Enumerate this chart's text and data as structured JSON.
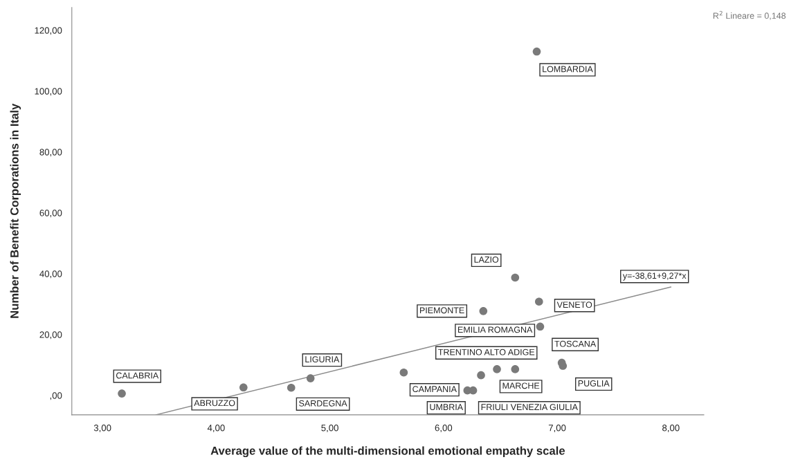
{
  "chart_data": {
    "type": "scatter",
    "xlabel": "Average value of the multi-dimensional emotional empathy scale",
    "ylabel": "Number of Benefit Corporations in Italy",
    "xlim": [
      2.73,
      8.29
    ],
    "ylim": [
      -6.4,
      127.5
    ],
    "xticks": [
      {
        "value": 3,
        "label": "3,00"
      },
      {
        "value": 4,
        "label": "4,00"
      },
      {
        "value": 5,
        "label": "5,00"
      },
      {
        "value": 6,
        "label": "6,00"
      },
      {
        "value": 7,
        "label": "7,00"
      },
      {
        "value": 8,
        "label": "8,00"
      }
    ],
    "yticks": [
      {
        "value": 0,
        "label": ",00"
      },
      {
        "value": 20,
        "label": "20,00"
      },
      {
        "value": 40,
        "label": "40,00"
      },
      {
        "value": 60,
        "label": "60,00"
      },
      {
        "value": 80,
        "label": "80,00"
      },
      {
        "value": 100,
        "label": "100,00"
      },
      {
        "value": 120,
        "label": "120,00"
      }
    ],
    "grid": false,
    "series": [
      {
        "color": "#7a7a7a",
        "marker": "circle",
        "x": [
          3.17,
          4.24,
          4.66,
          4.83,
          5.65,
          6.21,
          6.26,
          6.33,
          6.47,
          6.63,
          7.04,
          7.05,
          6.85,
          6.84,
          6.35,
          6.63,
          6.82
        ],
        "values": [
          0.6,
          2.6,
          2.5,
          5.6,
          7.5,
          1.6,
          1.6,
          6.6,
          8.6,
          8.6,
          10.7,
          9.7,
          22.6,
          30.8,
          27.7,
          38.7,
          113
        ]
      },
      {
        "type": "line",
        "color": "#8c8c8c",
        "x": [
          3.47,
          8.0
        ],
        "values": [
          -6.4,
          35.6
        ]
      }
    ],
    "annotations": [
      {
        "text": "CALABRIA",
        "x": 3.17,
        "y": 0.6
      },
      {
        "text": "ABRUZZO",
        "x": 4.24,
        "y": 2.6
      },
      {
        "text": "SARDEGNA",
        "x": 4.66,
        "y": 2.5
      },
      {
        "text": "LIGURIA",
        "x": 4.83,
        "y": 5.6
      },
      {
        "text": "CAMPANIA",
        "x": 5.65,
        "y": 7.5
      },
      {
        "text": "UMBRIA",
        "x": 6.21,
        "y": 1.6
      },
      {
        "text": "FRIULI VENEZIA GIULIA",
        "x": 6.26,
        "y": 1.6
      },
      {
        "text": "TRENTINO ALTO ADIGE",
        "x": 6.47,
        "y": 8.6
      },
      {
        "text": "MARCHE",
        "x": 6.63,
        "y": 8.6
      },
      {
        "text": "TOSCANA",
        "x": 7.04,
        "y": 10.7
      },
      {
        "text": "PUGLIA",
        "x": 7.05,
        "y": 9.7
      },
      {
        "text": "EMILIA ROMAGNA",
        "x": 6.85,
        "y": 22.6
      },
      {
        "text": "VENETO",
        "x": 6.84,
        "y": 30.8
      },
      {
        "text": "PIEMONTE",
        "x": 6.35,
        "y": 27.7
      },
      {
        "text": "LAZIO",
        "x": 6.63,
        "y": 38.7
      },
      {
        "text": "LOMBARDIA",
        "x": 6.82,
        "y": 113
      },
      {
        "text": "y=-38,61+9,27*x",
        "x": 8.0,
        "y": 35.6
      },
      "R$^{2}$ Lineare = 0,148"
    ]
  }
}
